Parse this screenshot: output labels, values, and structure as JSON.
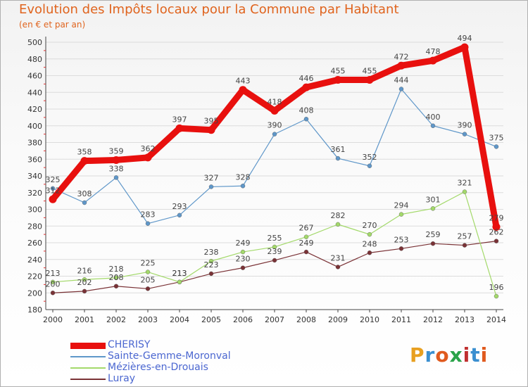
{
  "title": "Evolution des Impôts locaux pour la Commune par Habitant",
  "subtitle": "(en € et par an)",
  "logo": {
    "text": "Proxiti",
    "colors": [
      "#e8a020",
      "#3a8fd0",
      "#e05a1e",
      "#2aa34a",
      "#c03030",
      "#3a8fd0",
      "#e05a1e"
    ]
  },
  "chart_data": {
    "type": "line",
    "title": "Evolution des Impôts locaux pour la Commune par Habitant",
    "subtitle": "(en € et par an)",
    "xlabel": "",
    "ylabel": "",
    "x": [
      "2000",
      "2001",
      "2002",
      "2003",
      "2004",
      "2005",
      "2006",
      "2007",
      "2008",
      "2009",
      "2010",
      "2011",
      "2012",
      "2013",
      "2014"
    ],
    "ylim": [
      180,
      500
    ],
    "yticks": [
      180,
      200,
      220,
      240,
      260,
      280,
      300,
      320,
      340,
      360,
      380,
      400,
      420,
      440,
      460,
      480,
      500
    ],
    "grid": "horizontal",
    "legend_position": "bottom-left",
    "series": [
      {
        "name": "CHERISY",
        "color": "#e8100e",
        "values": [
          312,
          358,
          359,
          362,
          397,
          395,
          443,
          418,
          446,
          455,
          455,
          472,
          478,
          494,
          279
        ]
      },
      {
        "name": "Sainte-Gemme-Moronval",
        "color": "#5f97c9",
        "values": [
          325,
          308,
          338,
          283,
          293,
          327,
          328,
          390,
          408,
          361,
          352,
          444,
          400,
          390,
          375
        ]
      },
      {
        "name": "Mézières-en-Drouais",
        "color": "#a3d96a",
        "values": [
          213,
          216,
          218,
          225,
          213,
          238,
          249,
          255,
          267,
          282,
          270,
          294,
          301,
          321,
          196
        ]
      },
      {
        "name": "Luray",
        "color": "#7a3236",
        "values": [
          200,
          202,
          208,
          205,
          213,
          223,
          230,
          239,
          249,
          231,
          248,
          253,
          259,
          257,
          262
        ]
      }
    ]
  }
}
